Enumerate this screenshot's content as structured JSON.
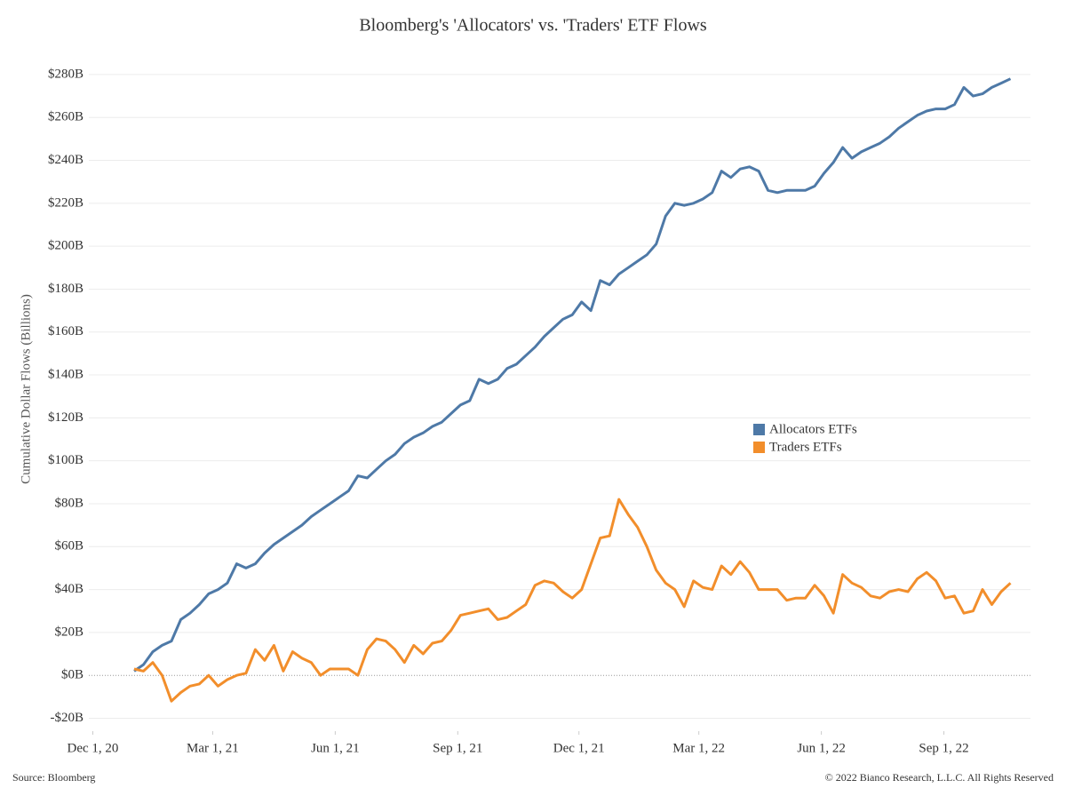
{
  "chart_data": {
    "type": "line",
    "title": "Bloomberg's 'Allocators' vs. 'Traders' ETF Flows",
    "y_label": "Cumulative Dollar Flows (Billions)",
    "source": "Source: Bloomberg",
    "copyright": "© 2022 Bianco Research, L.L.C. All Rights Reserved",
    "x": [
      "2021-01-01",
      "2021-01-08",
      "2021-01-15",
      "2021-01-22",
      "2021-01-29",
      "2021-02-05",
      "2021-02-12",
      "2021-02-19",
      "2021-02-26",
      "2021-03-05",
      "2021-03-12",
      "2021-03-19",
      "2021-03-26",
      "2021-04-02",
      "2021-04-09",
      "2021-04-16",
      "2021-04-23",
      "2021-04-30",
      "2021-05-07",
      "2021-05-14",
      "2021-05-21",
      "2021-05-28",
      "2021-06-04",
      "2021-06-11",
      "2021-06-18",
      "2021-06-25",
      "2021-07-02",
      "2021-07-09",
      "2021-07-16",
      "2021-07-23",
      "2021-07-30",
      "2021-08-06",
      "2021-08-13",
      "2021-08-20",
      "2021-08-27",
      "2021-09-03",
      "2021-09-10",
      "2021-09-17",
      "2021-09-24",
      "2021-10-01",
      "2021-10-08",
      "2021-10-15",
      "2021-10-22",
      "2021-10-29",
      "2021-11-05",
      "2021-11-12",
      "2021-11-19",
      "2021-11-26",
      "2021-12-03",
      "2021-12-10",
      "2021-12-17",
      "2021-12-24",
      "2021-12-31",
      "2022-01-07",
      "2022-01-14",
      "2022-01-21",
      "2022-01-28",
      "2022-02-04",
      "2022-02-11",
      "2022-02-18",
      "2022-02-25",
      "2022-03-04",
      "2022-03-11",
      "2022-03-18",
      "2022-03-25",
      "2022-04-01",
      "2022-04-08",
      "2022-04-15",
      "2022-04-22",
      "2022-04-29",
      "2022-05-06",
      "2022-05-13",
      "2022-05-20",
      "2022-05-27",
      "2022-06-03",
      "2022-06-10",
      "2022-06-17",
      "2022-06-24",
      "2022-07-01",
      "2022-07-08",
      "2022-07-15",
      "2022-07-22",
      "2022-07-29",
      "2022-08-05",
      "2022-08-12",
      "2022-08-19",
      "2022-08-26",
      "2022-09-02",
      "2022-09-09",
      "2022-09-16",
      "2022-09-23",
      "2022-09-30",
      "2022-10-07",
      "2022-10-14",
      "2022-10-21"
    ],
    "series": [
      {
        "name": "Allocators ETFs",
        "color": "#4e79a7",
        "values": [
          2,
          5,
          11,
          14,
          16,
          26,
          29,
          33,
          38,
          40,
          43,
          52,
          50,
          52,
          57,
          61,
          64,
          67,
          70,
          74,
          77,
          80,
          83,
          86,
          93,
          92,
          96,
          100,
          103,
          108,
          111,
          113,
          116,
          118,
          122,
          126,
          128,
          138,
          136,
          138,
          143,
          145,
          149,
          153,
          158,
          162,
          166,
          168,
          174,
          170,
          184,
          182,
          187,
          190,
          193,
          196,
          201,
          214,
          220,
          219,
          220,
          222,
          225,
          235,
          232,
          236,
          237,
          235,
          226,
          225,
          226,
          226,
          226,
          228,
          234,
          239,
          246,
          241,
          244,
          246,
          248,
          251,
          255,
          258,
          261,
          263,
          264,
          264,
          266,
          274,
          270,
          271,
          274,
          276,
          278
        ]
      },
      {
        "name": "Traders ETFs",
        "color": "#f28e2b",
        "values": [
          3,
          2,
          6,
          0,
          -12,
          -8,
          -5,
          -4,
          0,
          -5,
          -2,
          0,
          1,
          12,
          7,
          14,
          2,
          11,
          8,
          6,
          0,
          3,
          3,
          3,
          0,
          12,
          17,
          16,
          12,
          6,
          14,
          10,
          15,
          16,
          21,
          28,
          29,
          30,
          31,
          26,
          27,
          30,
          33,
          42,
          44,
          43,
          39,
          36,
          40,
          52,
          64,
          65,
          82,
          75,
          69,
          60,
          49,
          43,
          40,
          32,
          44,
          41,
          40,
          51,
          47,
          53,
          48,
          40,
          40,
          40,
          35,
          36,
          36,
          42,
          37,
          29,
          47,
          43,
          41,
          37,
          36,
          39,
          40,
          39,
          45,
          48,
          44,
          36,
          37,
          29,
          30,
          40,
          33,
          39,
          43
        ]
      }
    ],
    "xlim": [
      "2020-11-28",
      "2022-11-05"
    ],
    "xticks": [
      {
        "value": "2020-12-01",
        "label": "Dec 1, 20"
      },
      {
        "value": "2021-03-01",
        "label": "Mar 1, 21"
      },
      {
        "value": "2021-06-01",
        "label": "Jun 1, 21"
      },
      {
        "value": "2021-09-01",
        "label": "Sep 1, 21"
      },
      {
        "value": "2021-12-01",
        "label": "Dec 1, 21"
      },
      {
        "value": "2022-03-01",
        "label": "Mar 1, 22"
      },
      {
        "value": "2022-06-01",
        "label": "Jun 1, 22"
      },
      {
        "value": "2022-09-01",
        "label": "Sep 1, 22"
      }
    ],
    "ylim": [
      -26,
      287
    ],
    "yticks": [
      {
        "value": -20,
        "label": "-$20B"
      },
      {
        "value": 0,
        "label": "$0B"
      },
      {
        "value": 20,
        "label": "$20B"
      },
      {
        "value": 40,
        "label": "$40B"
      },
      {
        "value": 60,
        "label": "$60B"
      },
      {
        "value": 80,
        "label": "$80B"
      },
      {
        "value": 100,
        "label": "$100B"
      },
      {
        "value": 120,
        "label": "$120B"
      },
      {
        "value": 140,
        "label": "$140B"
      },
      {
        "value": 160,
        "label": "$160B"
      },
      {
        "value": 180,
        "label": "$180B"
      },
      {
        "value": 200,
        "label": "$200B"
      },
      {
        "value": 220,
        "label": "$220B"
      },
      {
        "value": 240,
        "label": "$240B"
      },
      {
        "value": 260,
        "label": "$260B"
      },
      {
        "value": 280,
        "label": "$280B"
      }
    ],
    "grid": true,
    "legend": "center right"
  }
}
